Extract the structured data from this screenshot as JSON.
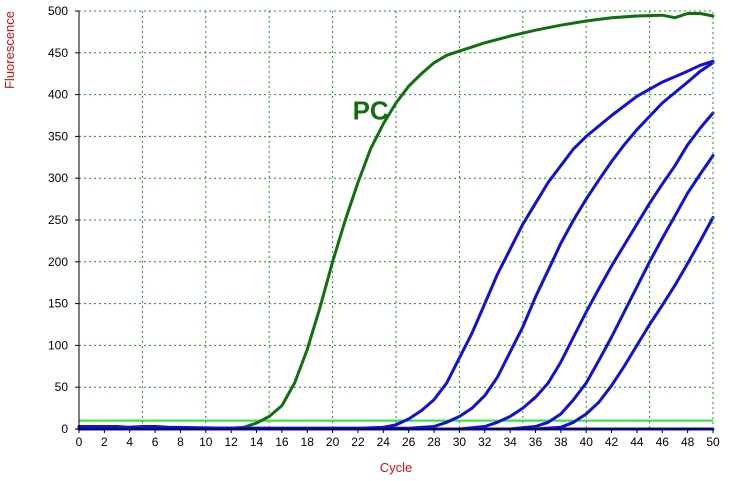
{
  "chart_data": {
    "type": "line",
    "xlabel": "Cycle",
    "ylabel": "Fluorescence",
    "xlim": [
      0,
      50
    ],
    "ylim": [
      0,
      500
    ],
    "xticks": [
      0,
      2,
      4,
      6,
      8,
      10,
      12,
      14,
      16,
      18,
      20,
      22,
      24,
      26,
      28,
      30,
      32,
      34,
      36,
      38,
      40,
      42,
      44,
      46,
      48,
      50
    ],
    "yticks": [
      0,
      50,
      100,
      150,
      200,
      250,
      300,
      350,
      400,
      450,
      500
    ],
    "grid": true,
    "legend": "none",
    "threshold": 10,
    "annotations": [
      {
        "text": "PC",
        "x": 23,
        "y": 370,
        "series": "PC"
      }
    ],
    "series": [
      {
        "name": "PC",
        "color": "#107010",
        "points": [
          [
            0,
            2
          ],
          [
            10,
            1
          ],
          [
            12,
            1
          ],
          [
            13,
            2
          ],
          [
            14,
            7
          ],
          [
            15,
            15
          ],
          [
            16,
            28
          ],
          [
            17,
            55
          ],
          [
            18,
            95
          ],
          [
            19,
            145
          ],
          [
            20,
            200
          ],
          [
            21,
            250
          ],
          [
            22,
            295
          ],
          [
            23,
            335
          ],
          [
            24,
            365
          ],
          [
            25,
            390
          ],
          [
            26,
            410
          ],
          [
            27,
            425
          ],
          [
            28,
            438
          ],
          [
            29,
            447
          ],
          [
            30,
            452
          ],
          [
            32,
            462
          ],
          [
            34,
            470
          ],
          [
            36,
            477
          ],
          [
            38,
            483
          ],
          [
            40,
            488
          ],
          [
            42,
            492
          ],
          [
            44,
            494
          ],
          [
            46,
            495
          ],
          [
            47,
            492
          ],
          [
            48,
            497
          ],
          [
            49,
            497
          ],
          [
            50,
            494
          ]
        ]
      },
      {
        "color": "#1010d8",
        "points": [
          [
            0,
            1
          ],
          [
            22,
            1
          ],
          [
            24,
            2
          ],
          [
            25,
            5
          ],
          [
            26,
            12
          ],
          [
            27,
            22
          ],
          [
            28,
            35
          ],
          [
            29,
            55
          ],
          [
            30,
            85
          ],
          [
            31,
            115
          ],
          [
            32,
            150
          ],
          [
            33,
            185
          ],
          [
            34,
            215
          ],
          [
            35,
            245
          ],
          [
            36,
            270
          ],
          [
            37,
            295
          ],
          [
            38,
            315
          ],
          [
            39,
            335
          ],
          [
            40,
            350
          ],
          [
            42,
            375
          ],
          [
            44,
            398
          ],
          [
            46,
            415
          ],
          [
            48,
            428
          ],
          [
            49,
            435
          ],
          [
            50,
            440
          ]
        ]
      },
      {
        "color": "#1010d8",
        "points": [
          [
            0,
            1
          ],
          [
            26,
            1
          ],
          [
            28,
            3
          ],
          [
            29,
            8
          ],
          [
            30,
            15
          ],
          [
            31,
            25
          ],
          [
            32,
            40
          ],
          [
            33,
            62
          ],
          [
            34,
            92
          ],
          [
            35,
            122
          ],
          [
            36,
            158
          ],
          [
            37,
            190
          ],
          [
            38,
            222
          ],
          [
            39,
            250
          ],
          [
            40,
            275
          ],
          [
            41,
            298
          ],
          [
            42,
            320
          ],
          [
            43,
            340
          ],
          [
            44,
            358
          ],
          [
            46,
            390
          ],
          [
            48,
            415
          ],
          [
            49,
            428
          ],
          [
            50,
            438
          ]
        ]
      },
      {
        "color": "#1010d8",
        "points": [
          [
            0,
            0
          ],
          [
            30,
            0
          ],
          [
            32,
            3
          ],
          [
            33,
            8
          ],
          [
            34,
            15
          ],
          [
            35,
            25
          ],
          [
            36,
            38
          ],
          [
            37,
            55
          ],
          [
            38,
            80
          ],
          [
            39,
            110
          ],
          [
            40,
            140
          ],
          [
            41,
            168
          ],
          [
            42,
            195
          ],
          [
            43,
            220
          ],
          [
            44,
            245
          ],
          [
            45,
            270
          ],
          [
            46,
            293
          ],
          [
            47,
            315
          ],
          [
            48,
            340
          ],
          [
            49,
            360
          ],
          [
            50,
            378
          ]
        ]
      },
      {
        "color": "#1010d8",
        "points": [
          [
            0,
            0
          ],
          [
            34,
            0
          ],
          [
            36,
            3
          ],
          [
            37,
            8
          ],
          [
            38,
            18
          ],
          [
            39,
            35
          ],
          [
            40,
            55
          ],
          [
            41,
            82
          ],
          [
            42,
            110
          ],
          [
            43,
            140
          ],
          [
            44,
            170
          ],
          [
            45,
            200
          ],
          [
            46,
            228
          ],
          [
            47,
            255
          ],
          [
            48,
            282
          ],
          [
            49,
            305
          ],
          [
            50,
            327
          ]
        ]
      },
      {
        "color": "#1010d8",
        "points": [
          [
            0,
            0
          ],
          [
            36,
            0
          ],
          [
            38,
            2
          ],
          [
            39,
            8
          ],
          [
            40,
            18
          ],
          [
            41,
            32
          ],
          [
            42,
            52
          ],
          [
            43,
            75
          ],
          [
            44,
            100
          ],
          [
            45,
            125
          ],
          [
            46,
            148
          ],
          [
            47,
            172
          ],
          [
            48,
            198
          ],
          [
            49,
            225
          ],
          [
            50,
            253
          ]
        ]
      },
      {
        "color": "#1010d8",
        "points": [
          [
            0,
            3
          ],
          [
            3,
            3
          ],
          [
            4,
            2
          ],
          [
            5,
            3
          ],
          [
            6,
            3
          ],
          [
            7,
            2
          ],
          [
            12,
            1
          ],
          [
            20,
            0
          ],
          [
            50,
            0
          ]
        ]
      }
    ]
  },
  "colors": {
    "grid": "#1a9a1a",
    "axis_label": "#d01010",
    "threshold": "#33dd33"
  }
}
